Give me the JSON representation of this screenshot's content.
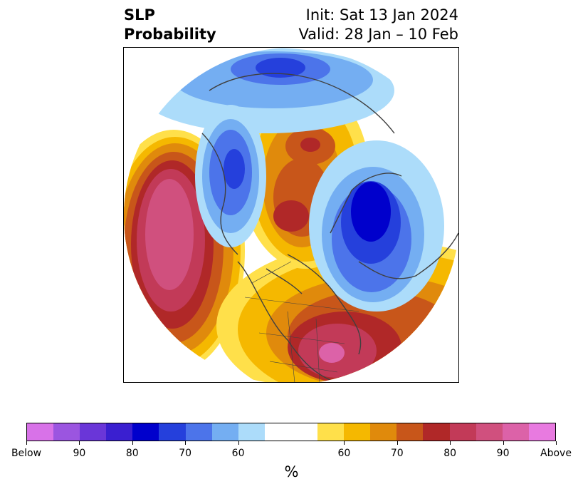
{
  "title": {
    "left_line1": "SLP",
    "left_line2": "Probability",
    "right_line1": "Init: Sat 13 Jan 2024",
    "right_line2": "Valid: 28 Jan – 10 Feb"
  },
  "map": {
    "projection": "north-polar-stereographic",
    "region": "North America / Arctic",
    "features": [
      {
        "name": "Gulf of Alaska / NE Pacific",
        "category": "above",
        "max_level": "90"
      },
      {
        "name": "Southeastern US / western Atlantic",
        "category": "above",
        "max_level": "90"
      },
      {
        "name": "Canadian Arctic Archipelago",
        "category": "above",
        "max_level": "80"
      },
      {
        "name": "Northern Siberia / Arctic coast",
        "category": "above",
        "max_level": "80"
      },
      {
        "name": "North Atlantic / Greenland–Iceland",
        "category": "below",
        "max_level": "80"
      },
      {
        "name": "Northern Europe / Scandinavia",
        "category": "below",
        "max_level": "70"
      },
      {
        "name": "Central Asia",
        "category": "below",
        "max_level": "80"
      }
    ]
  },
  "colorbar": {
    "colors": [
      "#d872e8",
      "#9b55e0",
      "#6a36d8",
      "#3a1fd0",
      "#0000cc",
      "#2540dc",
      "#4c74ea",
      "#74aef2",
      "#acdcfa",
      "#ffffff",
      "#ffe04a",
      "#f5b800",
      "#e08a0c",
      "#c8561a",
      "#b02828",
      "#c23a58",
      "#d0507e",
      "#dc62a8",
      "#e87ae0"
    ],
    "tick_labels": [
      "Below",
      "90",
      "80",
      "70",
      "60",
      "60",
      "70",
      "80",
      "90",
      "Above"
    ],
    "label": "%"
  }
}
